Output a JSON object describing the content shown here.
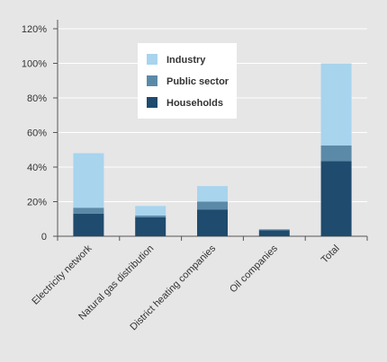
{
  "chart_data": {
    "type": "bar",
    "stacked": true,
    "categories": [
      "Electricity network",
      "Natural gas distribution",
      "District heating companies",
      "Oil companies",
      "Total"
    ],
    "series": [
      {
        "name": "Households",
        "values": [
          13,
          11,
          15.5,
          3.5,
          43.5
        ]
      },
      {
        "name": "Public sector",
        "values": [
          3.5,
          1,
          4.5,
          0.5,
          9
        ]
      },
      {
        "name": "Industry",
        "values": [
          31.5,
          5.5,
          9,
          0,
          47.5
        ]
      }
    ],
    "title": "",
    "xlabel": "",
    "ylabel": "",
    "ylim": [
      0,
      120
    ],
    "yticks": [
      "0",
      "20%",
      "40%",
      "60%",
      "80%",
      "100%",
      "120%"
    ],
    "grid": true,
    "legend": {
      "placement": "top-center",
      "entries": [
        "Industry",
        "Public sector",
        "Households"
      ]
    },
    "colors": {
      "Households": "#1e4b6e",
      "Public sector": "#5b8aa8",
      "Industry": "#a8d4ee",
      "background": "#e6e6e7",
      "grid": "#ffffff",
      "axis": "#555555"
    }
  }
}
